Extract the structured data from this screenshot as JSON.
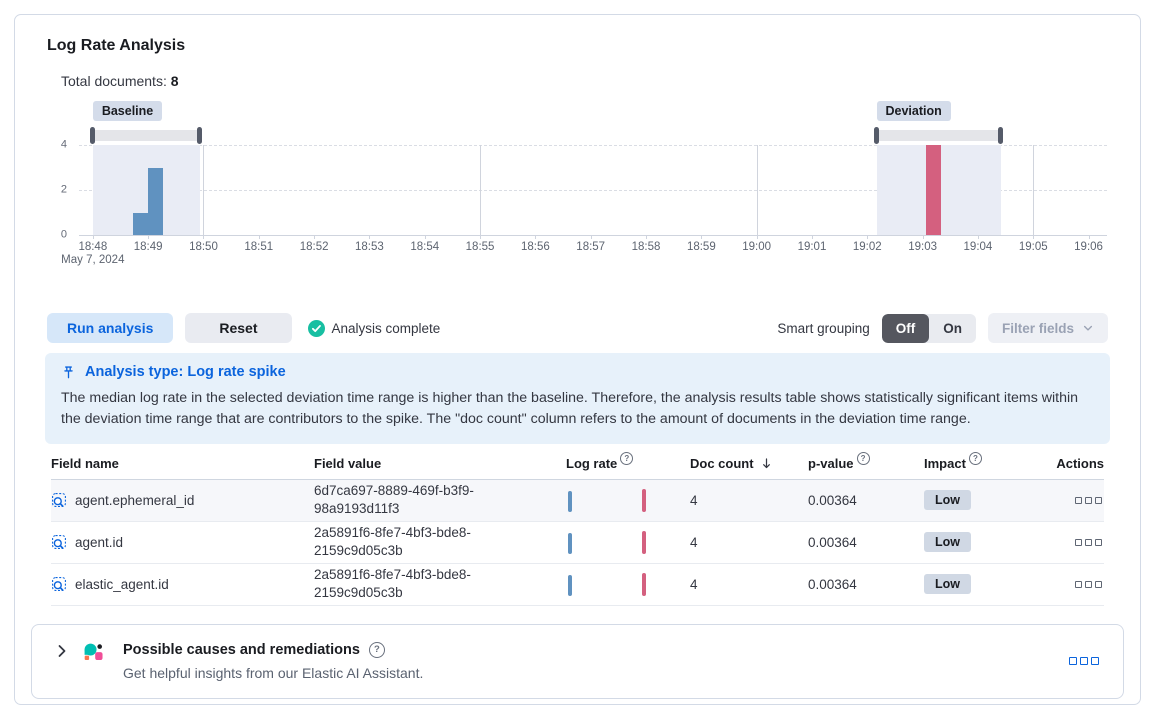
{
  "panel": {
    "title": "Log Rate Analysis",
    "total_documents_label": "Total documents:",
    "total_documents_value": "8"
  },
  "chart_data": {
    "type": "bar",
    "title": "Document count histogram with baseline and deviation brushes",
    "time_domain": {
      "start": "18:47:45",
      "end": "19:06:20"
    },
    "x_ticks": [
      "18:48",
      "18:49",
      "18:50",
      "18:51",
      "18:52",
      "18:53",
      "18:54",
      "18:55",
      "18:56",
      "18:57",
      "18:58",
      "18:59",
      "19:00",
      "19:01",
      "19:02",
      "19:03",
      "19:04",
      "19:05",
      "19:06"
    ],
    "x_gridlines": [
      "18:50",
      "18:55",
      "19:00",
      "19:05"
    ],
    "x_date_label": "May 7, 2024",
    "y_ticks": [
      0,
      2,
      4
    ],
    "ylim": [
      0,
      4
    ],
    "bar_width_seconds": 16,
    "baseline": {
      "label": "Baseline",
      "start": "18:48:00",
      "end": "18:49:56",
      "bars": [
        {
          "time": "18:48:44",
          "value": 1
        },
        {
          "time": "18:49:00",
          "value": 3
        }
      ]
    },
    "deviation": {
      "label": "Deviation",
      "start": "19:02:10",
      "end": "19:04:25",
      "bars": [
        {
          "time": "19:03:04",
          "value": 4
        }
      ]
    },
    "colors": {
      "baseline_bar": "#6092c0",
      "deviation_bar": "#d4607f",
      "region_bg": "#e9ecf5",
      "brush_bar": "#e4e5e9",
      "brush_handle": "#555b69",
      "badge_bg": "#d4dcea"
    }
  },
  "controls": {
    "run_analysis": "Run analysis",
    "reset": "Reset",
    "status": "Analysis complete",
    "smart_grouping_label": "Smart grouping",
    "toggle_off": "Off",
    "toggle_on": "On",
    "toggle_selected": "Off",
    "filter_fields": "Filter fields"
  },
  "callout": {
    "title": "Analysis type: Log rate spike",
    "body": "The median log rate in the selected deviation time range is higher than the baseline. Therefore, the analysis results table shows statistically significant items within the deviation time range that are contributors to the spike. The \"doc count\" column refers to the amount of documents in the deviation time range."
  },
  "table": {
    "columns": [
      {
        "label": "Field name"
      },
      {
        "label": "Field value"
      },
      {
        "label": "Log rate",
        "info": true
      },
      {
        "label": "Doc count",
        "sort": "desc"
      },
      {
        "label": "p-value",
        "info": true
      },
      {
        "label": "Impact",
        "info": true
      },
      {
        "label": "Actions",
        "align": "right"
      }
    ],
    "rows": [
      {
        "field_name": "agent.ephemeral_id",
        "field_value": "6d7ca697-8889-469f-b3f9-98a9193d11f3",
        "log_rate_bars": [
          0.84,
          0.92
        ],
        "doc_count": "4",
        "p_value": "0.00364",
        "impact": "Low"
      },
      {
        "field_name": "agent.id",
        "field_value": "2a5891f6-8fe7-4bf3-bde8-2159c9d05c3b",
        "log_rate_bars": [
          0.84,
          0.92
        ],
        "doc_count": "4",
        "p_value": "0.00364",
        "impact": "Low"
      },
      {
        "field_name": "elastic_agent.id",
        "field_value": "2a5891f6-8fe7-4bf3-bde8-2159c9d05c3b",
        "log_rate_bars": [
          0.84,
          0.92
        ],
        "doc_count": "4",
        "p_value": "0.00364",
        "impact": "Low"
      }
    ]
  },
  "causes_panel": {
    "title": "Possible causes and remediations",
    "subtitle": "Get helpful insights from our Elastic AI Assistant."
  },
  "icons": {
    "status": "check-in-circle",
    "callout": "pin",
    "field": "field-search",
    "row_actions": "boxes-horizontal",
    "accordion": "chevron-right",
    "help": "question-in-circle",
    "assistant": "elastic-ai-assistant-logo",
    "filter_chevron": "chevron-down",
    "sort": "arrow-down"
  },
  "colors": {
    "accent_blue": "#0b64dd",
    "success_teal": "#18bfa2",
    "callout_bg": "#e7f1fa",
    "impact_badge_bg": "#d0d8e4",
    "toggle_active_bg": "#55575f",
    "assistant_teal": "#00bfb3",
    "assistant_pink": "#f04e98",
    "assistant_orange": "#fa744e",
    "assistant_dark": "#1d1e24"
  }
}
